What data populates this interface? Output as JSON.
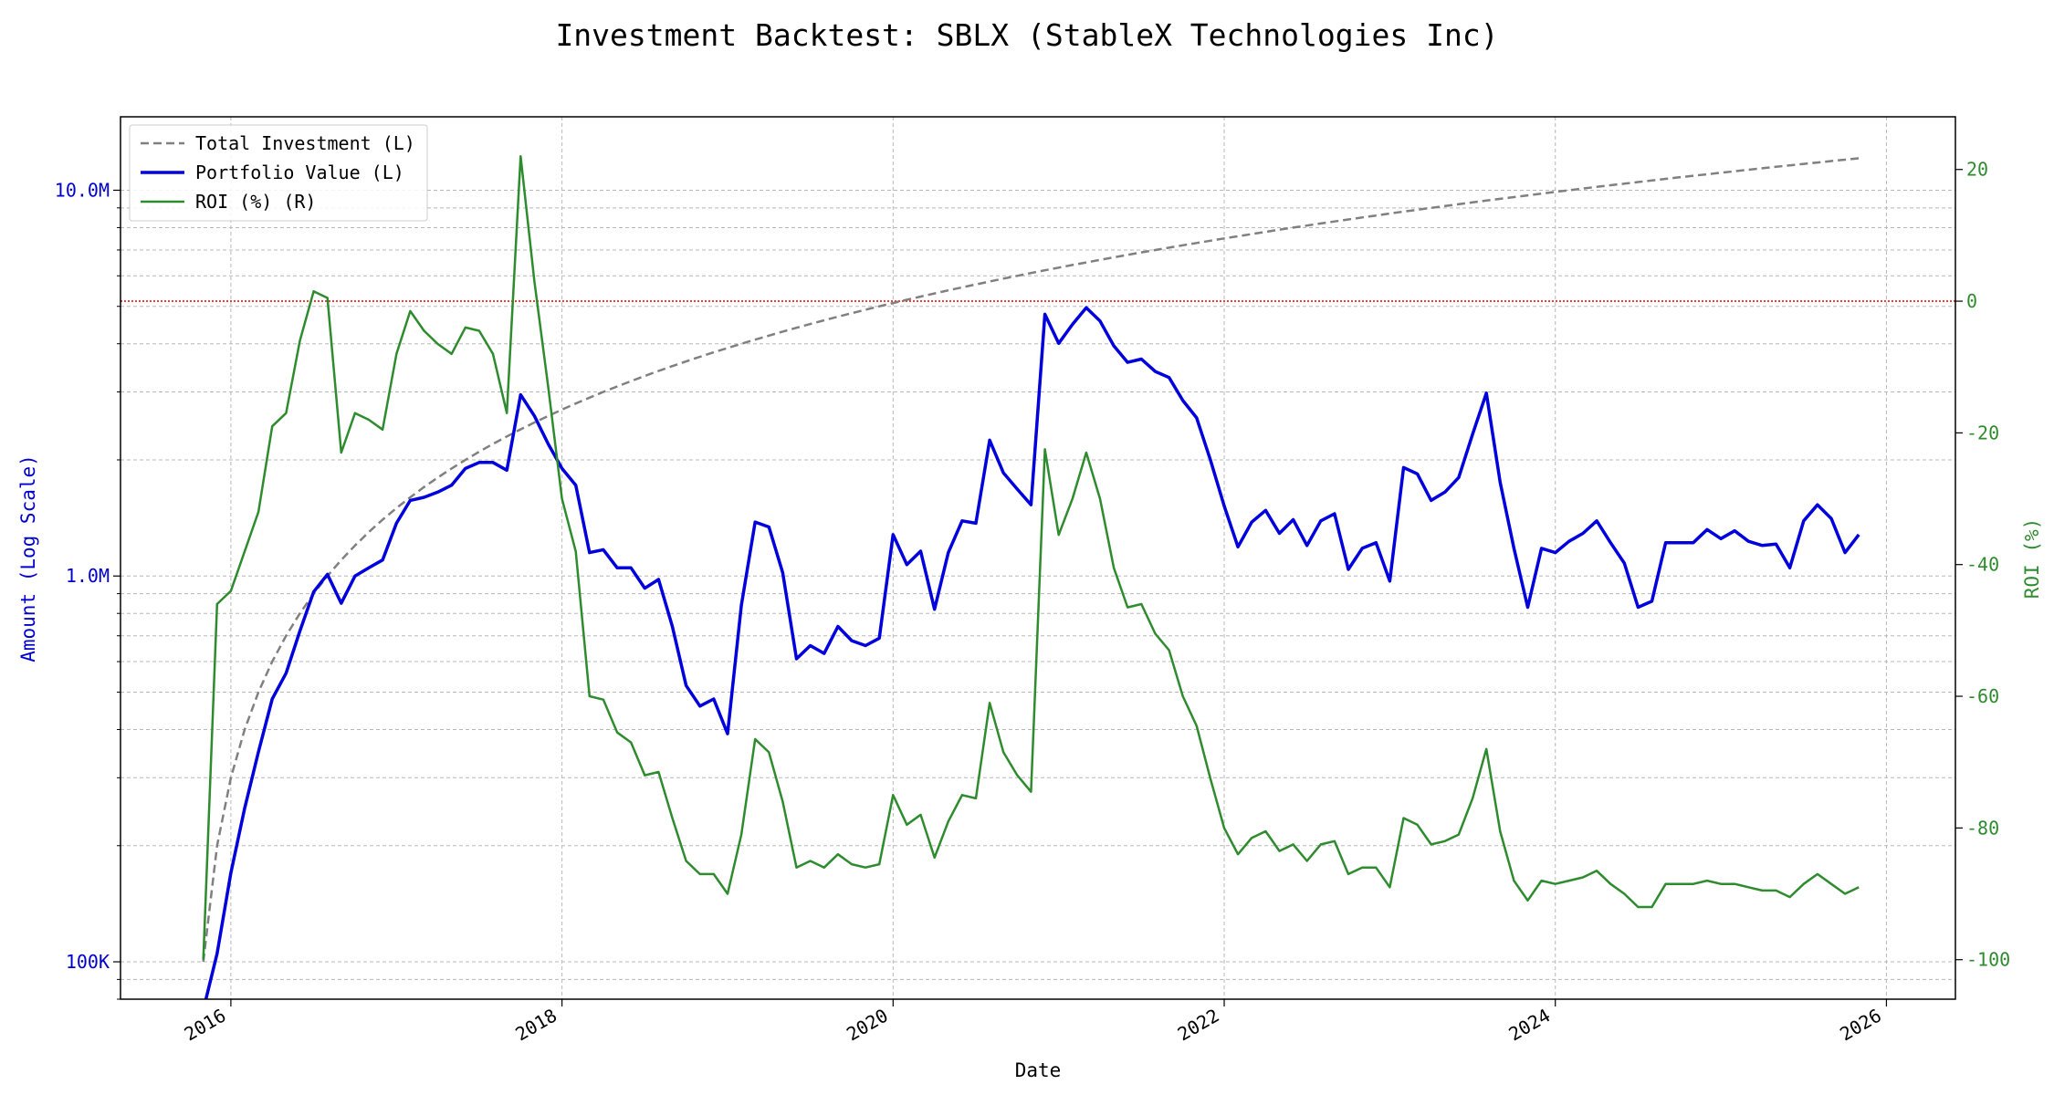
{
  "chart_data": {
    "type": "line",
    "title": "Investment Backtest: SBLX (StableX Technologies Inc)",
    "xlabel": "Date",
    "ylabel_left": "Amount (Log Scale)",
    "ylabel_right": "ROI (%)",
    "x_ticks": [
      "2016",
      "2018",
      "2020",
      "2022",
      "2024",
      "2026"
    ],
    "y_left_ticks": [
      "100K",
      "1.0M",
      "10.0M"
    ],
    "y_right_ticks": [
      "20",
      "0",
      "-20",
      "-40",
      "-60",
      "-80",
      "-100"
    ],
    "y_left_scale": "log",
    "y_left_range": [
      80000,
      15500000
    ],
    "y_right_range": [
      -106,
      28
    ],
    "x_range": [
      "2015-05",
      "2026-06"
    ],
    "grid": true,
    "legend_position": "top-left",
    "reference_line": {
      "axis": "right",
      "value": 0,
      "color": "#dd0000",
      "style": "dotted"
    },
    "colors": {
      "total_investment": "#808080",
      "portfolio_value": "#0000dd",
      "roi": "#2e8b2e"
    },
    "series": [
      {
        "name": "Total Investment (L)",
        "axis": "left",
        "style": "dashed",
        "x": [
          "2015-11",
          "2016-02",
          "2016-05",
          "2016-08",
          "2016-11",
          "2017-02",
          "2017-05",
          "2017-08",
          "2017-11",
          "2018-05",
          "2018-11",
          "2019-05",
          "2019-11",
          "2020-05",
          "2020-11",
          "2021-05",
          "2021-11",
          "2022-05",
          "2022-11",
          "2023-05",
          "2023-11",
          "2024-05",
          "2024-11",
          "2025-05",
          "2025-11"
        ],
        "values": [
          100000,
          400000,
          700000,
          1000000,
          1300000,
          1600000,
          1900000,
          2200000,
          2500000,
          3100000,
          3700000,
          4300000,
          4900000,
          5500000,
          6100000,
          6700000,
          7300000,
          7900000,
          8500000,
          9100000,
          9700000,
          10300000,
          10900000,
          11500000,
          12100000
        ]
      },
      {
        "name": "Portfolio Value (L)",
        "axis": "left",
        "style": "solid",
        "x": [
          "2015-11",
          "2015-12",
          "2016-01",
          "2016-02",
          "2016-03",
          "2016-04",
          "2016-05",
          "2016-06",
          "2016-07",
          "2016-08",
          "2016-09",
          "2016-10",
          "2016-11",
          "2016-12",
          "2017-01",
          "2017-02",
          "2017-03",
          "2017-04",
          "2017-05",
          "2017-06",
          "2017-07",
          "2017-08",
          "2017-09",
          "2017-10",
          "2017-11",
          "2017-12",
          "2018-01",
          "2018-02",
          "2018-03",
          "2018-04",
          "2018-05",
          "2018-06",
          "2018-07",
          "2018-08",
          "2018-09",
          "2018-10",
          "2018-11",
          "2018-12",
          "2019-01",
          "2019-02",
          "2019-03",
          "2019-04",
          "2019-05",
          "2019-06",
          "2019-07",
          "2019-08",
          "2019-09",
          "2019-10",
          "2019-11",
          "2019-12",
          "2020-01",
          "2020-02",
          "2020-03",
          "2020-04",
          "2020-05",
          "2020-06",
          "2020-07",
          "2020-08",
          "2020-09",
          "2020-10",
          "2020-11",
          "2020-12",
          "2021-01",
          "2021-02",
          "2021-03",
          "2021-04",
          "2021-05",
          "2021-06",
          "2021-07",
          "2021-08",
          "2021-09",
          "2021-10",
          "2021-11",
          "2021-12",
          "2022-01",
          "2022-02",
          "2022-03",
          "2022-04",
          "2022-05",
          "2022-06",
          "2022-07",
          "2022-08",
          "2022-09",
          "2022-10",
          "2022-11",
          "2022-12",
          "2023-01",
          "2023-02",
          "2023-03",
          "2023-04",
          "2023-05",
          "2023-06",
          "2023-07",
          "2023-08",
          "2023-09",
          "2023-10",
          "2023-11",
          "2023-12",
          "2024-01",
          "2024-02",
          "2024-03",
          "2024-04",
          "2024-05",
          "2024-06",
          "2024-07",
          "2024-08",
          "2024-09",
          "2024-10",
          "2024-11",
          "2024-12",
          "2025-01",
          "2025-02",
          "2025-03",
          "2025-04",
          "2025-05",
          "2025-06",
          "2025-07",
          "2025-08",
          "2025-09",
          "2025-10",
          "2025-11"
        ],
        "values": [
          75000,
          105000,
          170000,
          250000,
          350000,
          480000,
          560000,
          720000,
          910000,
          1010000,
          850000,
          1000000,
          1050000,
          1100000,
          1370000,
          1570000,
          1600000,
          1650000,
          1720000,
          1900000,
          1970000,
          1970000,
          1880000,
          2950000,
          2600000,
          2200000,
          1900000,
          1720000,
          1150000,
          1170000,
          1050000,
          1050000,
          930000,
          980000,
          740000,
          520000,
          460000,
          480000,
          390000,
          840000,
          1380000,
          1340000,
          1020000,
          610000,
          660000,
          630000,
          740000,
          680000,
          660000,
          690000,
          1280000,
          1070000,
          1160000,
          820000,
          1150000,
          1390000,
          1370000,
          2250000,
          1850000,
          1680000,
          1530000,
          4770000,
          4010000,
          4490000,
          4960000,
          4580000,
          3950000,
          3580000,
          3650000,
          3390000,
          3270000,
          2850000,
          2570000,
          2000000,
          1520000,
          1190000,
          1380000,
          1480000,
          1290000,
          1400000,
          1200000,
          1390000,
          1450000,
          1040000,
          1180000,
          1220000,
          970000,
          1910000,
          1840000,
          1570000,
          1650000,
          1800000,
          2330000,
          2980000,
          1750000,
          1180000,
          830000,
          1180000,
          1150000,
          1230000,
          1290000,
          1390000,
          1220000,
          1080000,
          830000,
          860000,
          1220000,
          1220000,
          1220000,
          1320000,
          1250000,
          1310000,
          1230000,
          1200000,
          1210000,
          1050000,
          1390000,
          1530000,
          1410000,
          1150000,
          1280000
        ]
      },
      {
        "name": "ROI (%) (R)",
        "axis": "right",
        "style": "solid",
        "x": [
          "2015-11",
          "2015-12",
          "2016-01",
          "2016-02",
          "2016-03",
          "2016-04",
          "2016-05",
          "2016-06",
          "2016-07",
          "2016-08",
          "2016-09",
          "2016-10",
          "2016-11",
          "2016-12",
          "2017-01",
          "2017-02",
          "2017-03",
          "2017-04",
          "2017-05",
          "2017-06",
          "2017-07",
          "2017-08",
          "2017-09",
          "2017-10",
          "2017-11",
          "2017-12",
          "2018-01",
          "2018-02",
          "2018-03",
          "2018-04",
          "2018-05",
          "2018-06",
          "2018-07",
          "2018-08",
          "2018-09",
          "2018-10",
          "2018-11",
          "2018-12",
          "2019-01",
          "2019-02",
          "2019-03",
          "2019-04",
          "2019-05",
          "2019-06",
          "2019-07",
          "2019-08",
          "2019-09",
          "2019-10",
          "2019-11",
          "2019-12",
          "2020-01",
          "2020-02",
          "2020-03",
          "2020-04",
          "2020-05",
          "2020-06",
          "2020-07",
          "2020-08",
          "2020-09",
          "2020-10",
          "2020-11",
          "2020-12",
          "2021-01",
          "2021-02",
          "2021-03",
          "2021-04",
          "2021-05",
          "2021-06",
          "2021-07",
          "2021-08",
          "2021-09",
          "2021-10",
          "2021-11",
          "2021-12",
          "2022-01",
          "2022-02",
          "2022-03",
          "2022-04",
          "2022-05",
          "2022-06",
          "2022-07",
          "2022-08",
          "2022-09",
          "2022-10",
          "2022-11",
          "2022-12",
          "2023-01",
          "2023-02",
          "2023-03",
          "2023-04",
          "2023-05",
          "2023-06",
          "2023-07",
          "2023-08",
          "2023-09",
          "2023-10",
          "2023-11",
          "2023-12",
          "2024-01",
          "2024-02",
          "2024-03",
          "2024-04",
          "2024-05",
          "2024-06",
          "2024-07",
          "2024-08",
          "2024-09",
          "2024-10",
          "2024-11",
          "2024-12",
          "2025-01",
          "2025-02",
          "2025-03",
          "2025-04",
          "2025-05",
          "2025-06",
          "2025-07",
          "2025-08",
          "2025-09",
          "2025-10",
          "2025-11"
        ],
        "values": [
          -100,
          -46,
          -44,
          -38,
          -32,
          -19,
          -17,
          -6,
          1.5,
          0.5,
          -23,
          -17,
          -18,
          -19.5,
          -8,
          -1.5,
          -4.5,
          -6.5,
          -8,
          -4,
          -4.5,
          -8,
          -17,
          22,
          3,
          -13,
          -30,
          -38,
          -60,
          -60.5,
          -65.5,
          -67,
          -72,
          -71.5,
          -78.5,
          -85,
          -87,
          -87,
          -90,
          -81,
          -66.5,
          -68.5,
          -76,
          -86,
          -85,
          -86,
          -84,
          -85.5,
          -86,
          -85.5,
          -75,
          -79.5,
          -78,
          -84.5,
          -79,
          -75,
          -75.5,
          -61,
          -68.5,
          -72,
          -74.5,
          -22.5,
          -35.5,
          -30,
          -23,
          -30,
          -40.5,
          -46.5,
          -46,
          -50.5,
          -53,
          -60,
          -64.5,
          -72.5,
          -80,
          -84,
          -81.5,
          -80.5,
          -83.5,
          -82.5,
          -85,
          -82.5,
          -82,
          -87,
          -86,
          -86,
          -89,
          -78.5,
          -79.5,
          -82.5,
          -82,
          -81,
          -75.5,
          -68,
          -80.5,
          -88,
          -91,
          -88,
          -88.5,
          -88,
          -87.5,
          -86.5,
          -88.5,
          -90,
          -92,
          -92,
          -88.5,
          -88.5,
          -88.5,
          -88,
          -88.5,
          -88.5,
          -89,
          -89.5,
          -89.5,
          -90.5,
          -88.5,
          -87,
          -88.5,
          -90,
          -89
        ]
      }
    ]
  }
}
